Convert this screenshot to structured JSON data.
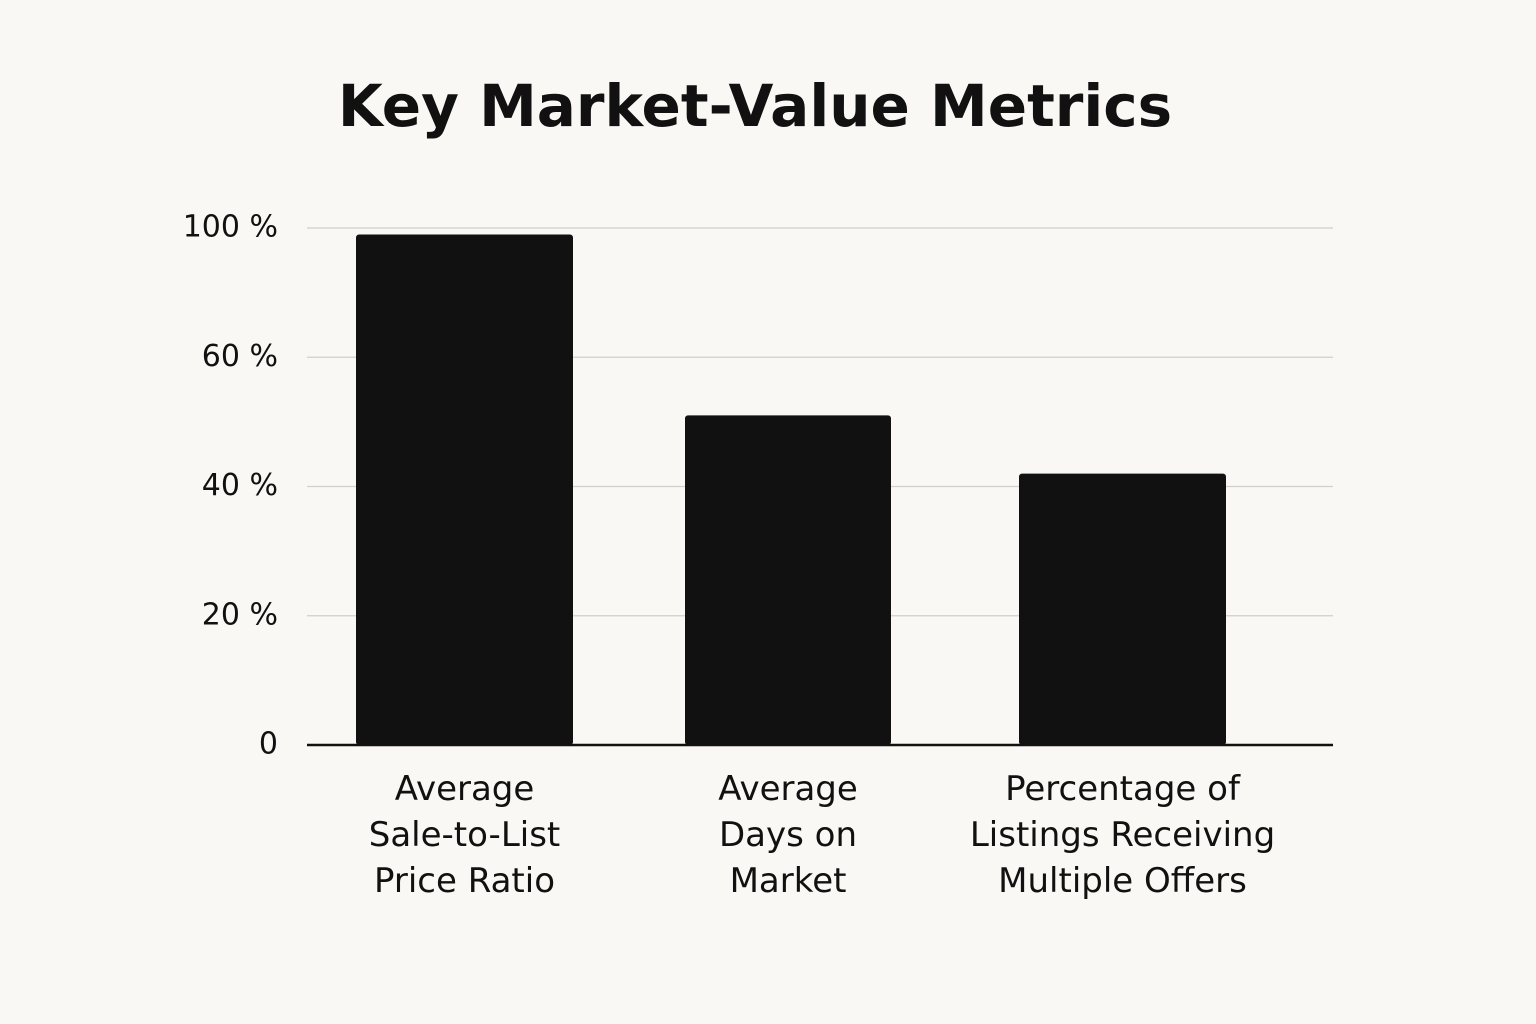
{
  "chart_data": {
    "type": "bar",
    "title": "Key Market-Value Metrics",
    "categories": [
      "Average Sale-to-List Price Ratio",
      "Average Days on Market",
      "Percentage of Listings Receiving Multiple Offers"
    ],
    "values": [
      98,
      51,
      42
    ],
    "color": "#111111",
    "ylim": [
      0,
      100
    ],
    "yticks": [
      0,
      {
        "value": 20,
        "label": "20 %"
      },
      {
        "value": 40,
        "label": "40 %"
      },
      {
        "value": 60,
        "label": "60 %"
      },
      {
        "value": 100,
        "label": "100 %"
      }
    ],
    "grid": true
  }
}
